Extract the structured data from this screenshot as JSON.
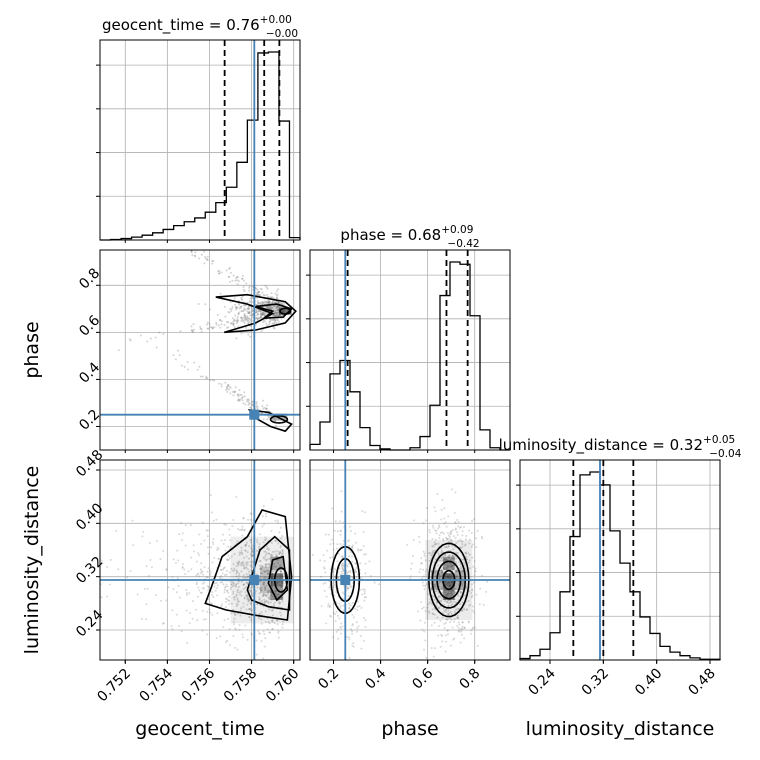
{
  "chart_data": {
    "type": "corner",
    "parameters": [
      "geocent_time",
      "phase",
      "luminosity_distance"
    ],
    "truths": {
      "geocent_time": 0.75813,
      "phase": 0.25,
      "luminosity_distance": 0.315
    },
    "colors": {
      "truth": "#4682b4",
      "hist": "#000000",
      "grid": "#b0b0b0",
      "samples": "#808080"
    },
    "grid": true,
    "titles": {
      "geocent_time": {
        "prefix": "geocent_time = 0.76",
        "plus": "+0.00",
        "minus": "−0.00"
      },
      "phase": {
        "prefix": "phase = 0.68",
        "plus": "+0.09",
        "minus": "−0.42"
      },
      "luminosity_distance": {
        "prefix": "luminosity_distance = 0.32",
        "plus": "+0.05",
        "minus": "−0.04"
      }
    },
    "axes_labels": {
      "x": [
        "geocent_time",
        "phase",
        "luminosity_distance"
      ],
      "y": [
        "phase",
        "luminosity_distance"
      ]
    },
    "ranges": {
      "geocent_time": [
        0.7508,
        0.7603
      ],
      "phase": [
        0.1,
        0.95
      ],
      "luminosity_distance": [
        0.195,
        0.495
      ]
    },
    "ticks": {
      "geocent_time": [
        0.752,
        0.754,
        0.756,
        0.758,
        0.76
      ],
      "phase": [
        0.2,
        0.4,
        0.6,
        0.8
      ],
      "phase_x": [
        0.2,
        0.4,
        0.6,
        0.8
      ],
      "luminosity_distance": [
        0.24,
        0.32,
        0.4,
        0.48
      ]
    },
    "tick_labels": {
      "geocent_time": [
        "0.752",
        "0.754",
        "0.756",
        "0.758",
        "0.760"
      ],
      "phase": [
        "0.2",
        "0.4",
        "0.6",
        "0.8"
      ],
      "luminosity_distance": [
        "0.24",
        "0.32",
        "0.40",
        "0.48"
      ]
    },
    "quantiles": {
      "geocent_time": [
        0.75672,
        0.7586,
        0.75932
      ],
      "phase": [
        0.26,
        0.68,
        0.77
      ],
      "luminosity_distance": [
        0.275,
        0.32,
        0.365
      ]
    },
    "histograms": {
      "geocent_time": {
        "edges": [
          0.7508,
          0.7513,
          0.7518,
          0.7523,
          0.7528,
          0.7533,
          0.7538,
          0.7543,
          0.7548,
          0.7553,
          0.7558,
          0.7563,
          0.7568,
          0.7573,
          0.7578,
          0.7583,
          0.7588,
          0.7593,
          0.7598,
          0.7603
        ],
        "counts": [
          0,
          1,
          3,
          6,
          10,
          15,
          22,
          30,
          38,
          46,
          58,
          78,
          110,
          162,
          250,
          390,
          392,
          248,
          5
        ]
      },
      "phase": {
        "edges": [
          0.1,
          0.1425,
          0.185,
          0.2275,
          0.27,
          0.3125,
          0.355,
          0.3975,
          0.44,
          0.4825,
          0.525,
          0.5675,
          0.61,
          0.6525,
          0.695,
          0.7375,
          0.78,
          0.8225,
          0.865,
          0.9075,
          0.95
        ],
        "counts": [
          5,
          25,
          68,
          80,
          52,
          20,
          4,
          1,
          0,
          0,
          2,
          12,
          40,
          138,
          168,
          166,
          120,
          18,
          2,
          0
        ]
      },
      "luminosity_distance": {
        "edges": [
          0.195,
          0.21,
          0.225,
          0.24,
          0.255,
          0.27,
          0.285,
          0.3,
          0.315,
          0.33,
          0.345,
          0.36,
          0.375,
          0.39,
          0.405,
          0.42,
          0.435,
          0.45,
          0.465,
          0.48,
          0.495
        ],
        "counts": [
          2,
          6,
          15,
          38,
          95,
          172,
          258,
          262,
          244,
          180,
          135,
          95,
          60,
          37,
          19,
          11,
          6,
          3,
          1,
          1
        ]
      }
    }
  }
}
